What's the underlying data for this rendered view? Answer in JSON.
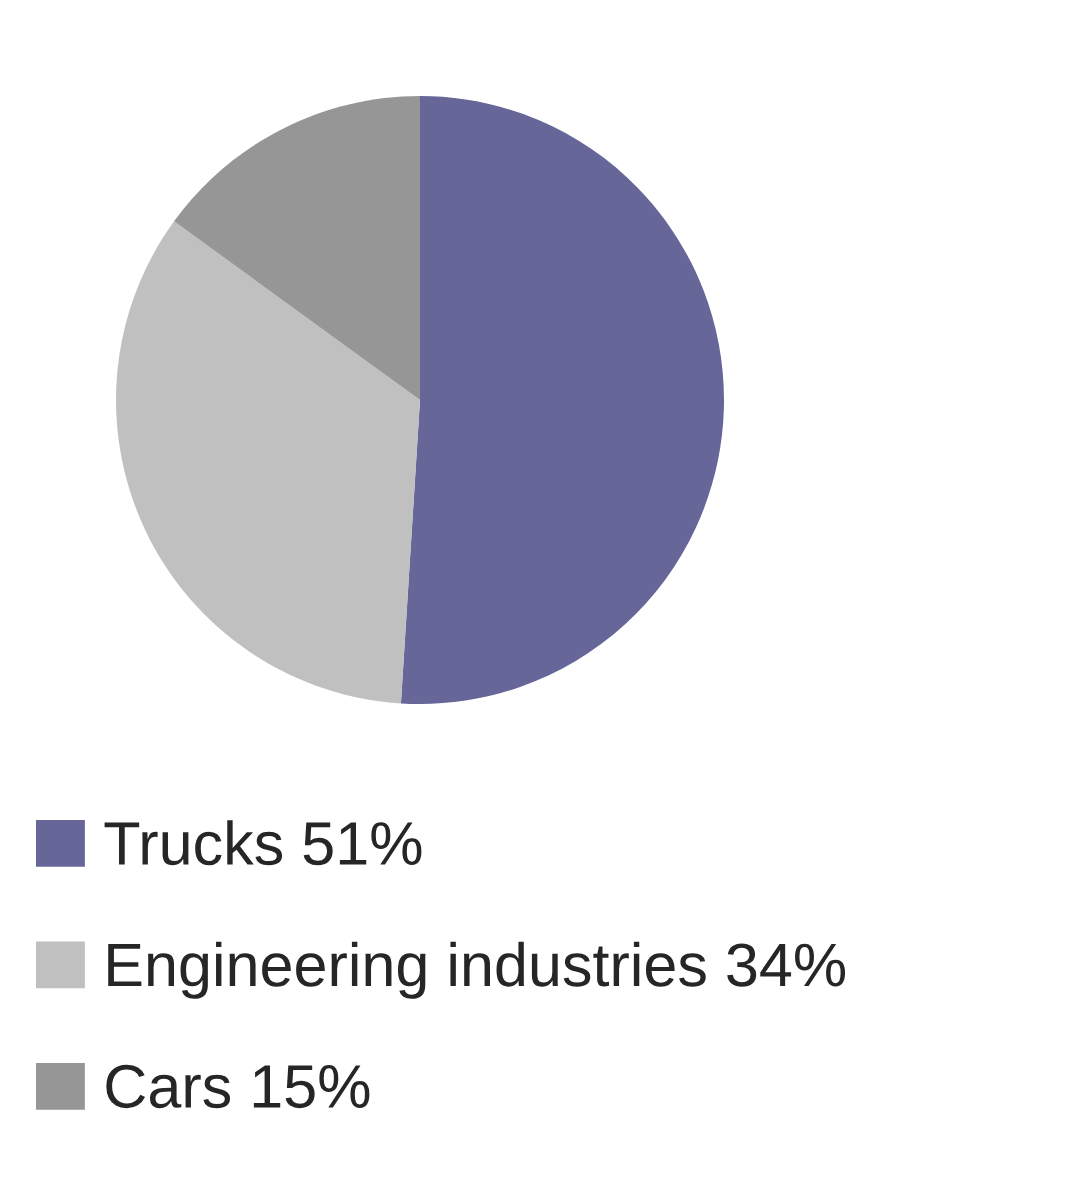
{
  "chart_data": {
    "type": "pie",
    "categories": [
      "Trucks",
      "Engineering industries",
      "Cars"
    ],
    "values": [
      51,
      34,
      15
    ],
    "value_labels": [
      "51%",
      "34%",
      "15%"
    ],
    "colors": [
      "#666699",
      "#c0c0c0",
      "#969696"
    ],
    "legend": "bottom"
  }
}
